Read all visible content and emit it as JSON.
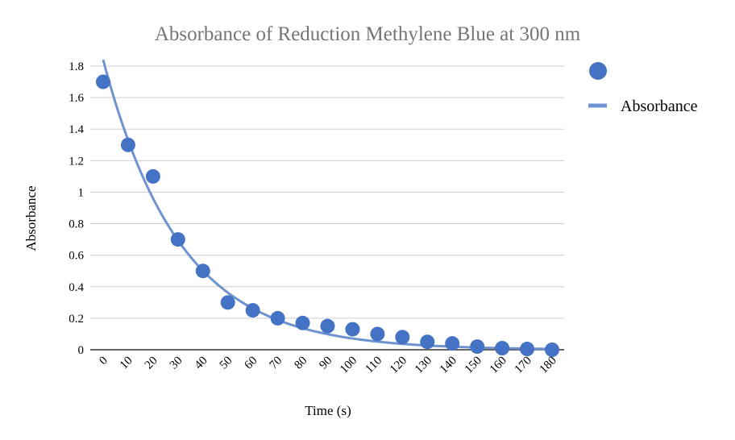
{
  "chart_data": {
    "type": "scatter",
    "title": "Absorbance of Reduction Methylene Blue at 300 nm",
    "xlabel": "Time (s)",
    "ylabel": "Absorbance",
    "x": [
      0,
      10,
      20,
      30,
      40,
      50,
      60,
      70,
      80,
      90,
      100,
      110,
      120,
      130,
      140,
      150,
      160,
      170,
      180
    ],
    "x_tick_labels": [
      "0",
      "10",
      "20",
      "30",
      "40",
      "50",
      "60",
      "70",
      "80",
      "90",
      "100",
      "110",
      "120",
      "130",
      "140",
      "150",
      "160",
      "170",
      "180"
    ],
    "y_tick_values": [
      0,
      0.2,
      0.4,
      0.6,
      0.8,
      1,
      1.2,
      1.4,
      1.6,
      1.8
    ],
    "y_tick_labels": [
      "0",
      "0.2",
      "0.4",
      "0.6",
      "0.8",
      "1",
      "1.2",
      "1.4",
      "1.6",
      "1.8"
    ],
    "ylim": [
      0,
      1.8
    ],
    "grid": true,
    "legend_position": "right",
    "series": [
      {
        "name": "",
        "kind": "points",
        "color": "#4472C4",
        "values": [
          1.7,
          1.3,
          1.1,
          0.7,
          0.5,
          0.3,
          0.25,
          0.2,
          0.17,
          0.15,
          0.13,
          0.1,
          0.08,
          0.05,
          0.04,
          0.02,
          0.01,
          0.005,
          0.0
        ]
      },
      {
        "name": "Absorbance",
        "kind": "trendline",
        "color": "#6F93D0",
        "model": "exponential",
        "start": 1.84,
        "rate": 0.0325
      }
    ]
  }
}
